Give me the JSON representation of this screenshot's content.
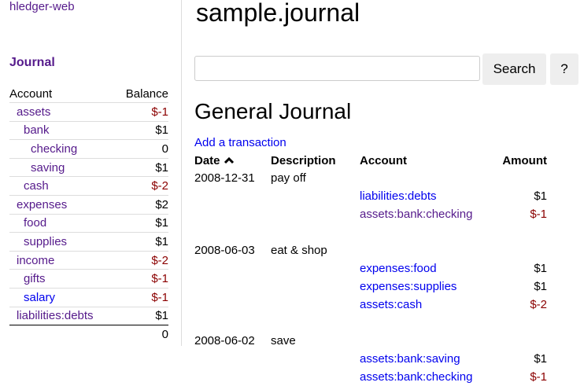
{
  "sidebar": {
    "logo": "hledger-web",
    "journal_link": "Journal",
    "headers": {
      "account": "Account",
      "balance": "Balance"
    },
    "accounts": [
      {
        "name": "assets",
        "depth": 0,
        "balance": "$-1",
        "negative": true,
        "visited": true
      },
      {
        "name": "bank",
        "depth": 1,
        "balance": "$1",
        "negative": false,
        "visited": true
      },
      {
        "name": "checking",
        "depth": 2,
        "balance": "0",
        "negative": false,
        "visited": true
      },
      {
        "name": "saving",
        "depth": 2,
        "balance": "$1",
        "negative": false,
        "visited": true
      },
      {
        "name": "cash",
        "depth": 1,
        "balance": "$-2",
        "negative": true,
        "visited": true
      },
      {
        "name": "expenses",
        "depth": 0,
        "balance": "$2",
        "negative": false,
        "visited": true
      },
      {
        "name": "food",
        "depth": 1,
        "balance": "$1",
        "negative": false,
        "visited": true
      },
      {
        "name": "supplies",
        "depth": 1,
        "balance": "$1",
        "negative": false,
        "visited": true
      },
      {
        "name": "income",
        "depth": 0,
        "balance": "$-2",
        "negative": true,
        "visited": true
      },
      {
        "name": "gifts",
        "depth": 1,
        "balance": "$-1",
        "negative": true,
        "visited": true
      },
      {
        "name": "salary",
        "depth": 1,
        "balance": "$-1",
        "negative": true,
        "visited": false
      },
      {
        "name": "liabilities:debts",
        "depth": 0,
        "balance": "$1",
        "negative": false,
        "visited": true
      }
    ],
    "total": "0"
  },
  "main": {
    "title": "sample.journal",
    "search": {
      "value": "",
      "placeholder": "",
      "button": "Search",
      "help": "?"
    },
    "heading": "General Journal",
    "add_transaction": "Add a transaction",
    "columns": {
      "date": "Date",
      "description": "Description",
      "account": "Account",
      "amount": "Amount"
    },
    "sort_icon": "chevron-up-icon",
    "transactions": [
      {
        "date": "2008-12-31",
        "description": "pay off",
        "postings": [
          {
            "account": "liabilities:debts",
            "amount": "$1",
            "negative": false,
            "visited": false
          },
          {
            "account": "assets:bank:checking",
            "amount": "$-1",
            "negative": true,
            "visited": true
          }
        ]
      },
      {
        "date": "2008-06-03",
        "description": "eat & shop",
        "postings": [
          {
            "account": "expenses:food",
            "amount": "$1",
            "negative": false,
            "visited": false
          },
          {
            "account": "expenses:supplies",
            "amount": "$1",
            "negative": false,
            "visited": false
          },
          {
            "account": "assets:cash",
            "amount": "$-2",
            "negative": true,
            "visited": false
          }
        ]
      },
      {
        "date": "2008-06-02",
        "description": "save",
        "postings": [
          {
            "account": "assets:bank:saving",
            "amount": "$1",
            "negative": false,
            "visited": false
          },
          {
            "account": "assets:bank:checking",
            "amount": "$-1",
            "negative": true,
            "visited": false
          }
        ]
      }
    ]
  },
  "colors": {
    "link": "#0000ee",
    "visited": "#551a8b",
    "negative": "#8b0000"
  }
}
